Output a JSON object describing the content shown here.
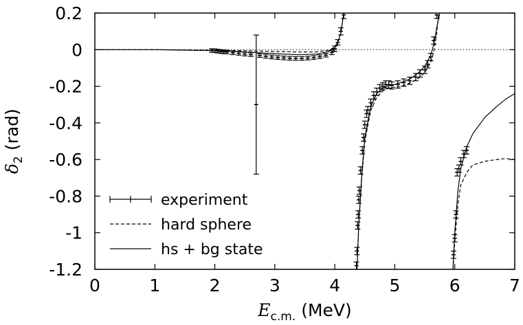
{
  "chart_data": {
    "type": "line",
    "xlabel_main": "E",
    "xlabel_sub": "c.m.",
    "xlabel_unit": "(MeV)",
    "ylabel_main": "δ",
    "ylabel_sub": "2",
    "ylabel_unit": "(rad)",
    "xlim": [
      0,
      7
    ],
    "ylim": [
      -1.2,
      0.2
    ],
    "x_ticks": [
      0,
      1,
      2,
      3,
      4,
      5,
      6,
      7
    ],
    "x_tick_labels": [
      "0",
      "1",
      "2",
      "3",
      "4",
      "5",
      "6",
      "7"
    ],
    "y_ticks": [
      0.2,
      0,
      -0.2,
      -0.4,
      -0.6,
      -0.8,
      -1,
      -1.2
    ],
    "y_tick_labels": [
      "0.2",
      "0",
      "-0.2",
      "-0.4",
      "-0.6",
      "-0.8",
      "-1",
      "-1.2"
    ],
    "grid": false,
    "legend_position": "bottom-left",
    "legend": [
      {
        "label": "experiment",
        "style": "errorbar"
      },
      {
        "label": "hard sphere",
        "style": "dashed"
      },
      {
        "label": "hs + bg state",
        "style": "solid"
      }
    ],
    "reference_line": {
      "y": 0,
      "style": "dotted"
    },
    "series": [
      {
        "name": "experiment",
        "style": "errorbar",
        "points": [
          {
            "x": 1.95,
            "y": -0.005,
            "err": 0.01
          },
          {
            "x": 2.0,
            "y": -0.006,
            "err": 0.01
          },
          {
            "x": 2.05,
            "y": -0.008,
            "err": 0.01
          },
          {
            "x": 2.1,
            "y": -0.01,
            "err": 0.01
          },
          {
            "x": 2.15,
            "y": -0.012,
            "err": 0.01
          },
          {
            "x": 2.2,
            "y": -0.013,
            "err": 0.01
          },
          {
            "x": 2.3,
            "y": -0.017,
            "err": 0.01
          },
          {
            "x": 2.4,
            "y": -0.02,
            "err": 0.01
          },
          {
            "x": 2.5,
            "y": -0.024,
            "err": 0.01
          },
          {
            "x": 2.6,
            "y": -0.027,
            "err": 0.01
          },
          {
            "x": 2.69,
            "y": -0.3,
            "err": 0.38
          },
          {
            "x": 2.75,
            "y": -0.032,
            "err": 0.01
          },
          {
            "x": 2.85,
            "y": -0.036,
            "err": 0.01
          },
          {
            "x": 2.95,
            "y": -0.04,
            "err": 0.01
          },
          {
            "x": 3.05,
            "y": -0.043,
            "err": 0.01
          },
          {
            "x": 3.15,
            "y": -0.045,
            "err": 0.01
          },
          {
            "x": 3.25,
            "y": -0.047,
            "err": 0.01
          },
          {
            "x": 3.35,
            "y": -0.048,
            "err": 0.01
          },
          {
            "x": 3.45,
            "y": -0.048,
            "err": 0.01
          },
          {
            "x": 3.55,
            "y": -0.046,
            "err": 0.01
          },
          {
            "x": 3.65,
            "y": -0.043,
            "err": 0.01
          },
          {
            "x": 3.75,
            "y": -0.038,
            "err": 0.01
          },
          {
            "x": 3.85,
            "y": -0.03,
            "err": 0.01
          },
          {
            "x": 3.95,
            "y": -0.015,
            "err": 0.012
          },
          {
            "x": 4.0,
            "y": 0.005,
            "err": 0.015
          },
          {
            "x": 4.05,
            "y": 0.04,
            "err": 0.015
          },
          {
            "x": 4.1,
            "y": 0.1,
            "err": 0.02
          },
          {
            "x": 4.15,
            "y": 0.19,
            "err": 0.02
          },
          {
            "x": 4.36,
            "y": -1.18,
            "err": 0.02
          },
          {
            "x": 4.37,
            "y": -1.1,
            "err": 0.02
          },
          {
            "x": 4.38,
            "y": -0.96,
            "err": 0.02
          },
          {
            "x": 4.39,
            "y": -0.9,
            "err": 0.02
          },
          {
            "x": 4.4,
            "y": -0.82,
            "err": 0.02
          },
          {
            "x": 4.41,
            "y": -0.77,
            "err": 0.02
          },
          {
            "x": 4.43,
            "y": -0.66,
            "err": 0.02
          },
          {
            "x": 4.46,
            "y": -0.55,
            "err": 0.02
          },
          {
            "x": 4.48,
            "y": -0.48,
            "err": 0.02
          },
          {
            "x": 4.5,
            "y": -0.41,
            "err": 0.02
          },
          {
            "x": 4.53,
            "y": -0.35,
            "err": 0.02
          },
          {
            "x": 4.55,
            "y": -0.33,
            "err": 0.02
          },
          {
            "x": 4.6,
            "y": -0.29,
            "err": 0.02
          },
          {
            "x": 4.65,
            "y": -0.25,
            "err": 0.02
          },
          {
            "x": 4.7,
            "y": -0.23,
            "err": 0.02
          },
          {
            "x": 4.75,
            "y": -0.21,
            "err": 0.02
          },
          {
            "x": 4.8,
            "y": -0.2,
            "err": 0.02
          },
          {
            "x": 4.85,
            "y": -0.19,
            "err": 0.02
          },
          {
            "x": 4.9,
            "y": -0.19,
            "err": 0.02
          },
          {
            "x": 4.95,
            "y": -0.195,
            "err": 0.02
          },
          {
            "x": 5.05,
            "y": -0.19,
            "err": 0.02
          },
          {
            "x": 5.15,
            "y": -0.18,
            "err": 0.02
          },
          {
            "x": 5.25,
            "y": -0.17,
            "err": 0.02
          },
          {
            "x": 5.35,
            "y": -0.15,
            "err": 0.02
          },
          {
            "x": 5.42,
            "y": -0.13,
            "err": 0.02
          },
          {
            "x": 5.5,
            "y": -0.11,
            "err": 0.02
          },
          {
            "x": 5.55,
            "y": -0.08,
            "err": 0.02
          },
          {
            "x": 5.6,
            "y": -0.04,
            "err": 0.02
          },
          {
            "x": 5.65,
            "y": 0.05,
            "err": 0.02
          },
          {
            "x": 5.7,
            "y": 0.19,
            "err": 0.02
          },
          {
            "x": 5.98,
            "y": -1.12,
            "err": 0.02
          },
          {
            "x": 6.0,
            "y": -1.03,
            "err": 0.02
          },
          {
            "x": 6.02,
            "y": -0.9,
            "err": 0.02
          },
          {
            "x": 6.04,
            "y": -0.67,
            "err": 0.02
          },
          {
            "x": 6.07,
            "y": -0.65,
            "err": 0.02
          },
          {
            "x": 6.1,
            "y": -0.61,
            "err": 0.02
          },
          {
            "x": 6.15,
            "y": -0.57,
            "err": 0.02
          },
          {
            "x": 6.2,
            "y": -0.55,
            "err": 0.02
          }
        ]
      },
      {
        "name": "hard sphere",
        "style": "dashed",
        "segments": [
          [
            [
              0,
              0
            ],
            [
              1,
              0
            ],
            [
              2,
              -0.003
            ],
            [
              2.5,
              -0.006
            ],
            [
              3,
              -0.01
            ],
            [
              3.4,
              -0.013
            ],
            [
              3.7,
              -0.012
            ],
            [
              3.9,
              -0.003
            ],
            [
              4.0,
              0.015
            ],
            [
              4.05,
              0.04
            ],
            [
              4.1,
              0.09
            ],
            [
              4.15,
              0.2
            ]
          ],
          [
            [
              4.37,
              -1.2
            ],
            [
              4.4,
              -0.95
            ],
            [
              4.45,
              -0.7
            ],
            [
              4.5,
              -0.5
            ],
            [
              4.6,
              -0.33
            ],
            [
              4.7,
              -0.26
            ],
            [
              4.8,
              -0.225
            ],
            [
              4.9,
              -0.21
            ],
            [
              5.0,
              -0.205
            ],
            [
              5.1,
              -0.2
            ],
            [
              5.2,
              -0.19
            ],
            [
              5.3,
              -0.175
            ],
            [
              5.4,
              -0.155
            ],
            [
              5.5,
              -0.125
            ],
            [
              5.6,
              -0.07
            ],
            [
              5.65,
              -0.01
            ],
            [
              5.7,
              0.09
            ],
            [
              5.73,
              0.2
            ]
          ],
          [
            [
              5.97,
              -1.2
            ],
            [
              6.0,
              -1.05
            ],
            [
              6.05,
              -0.85
            ],
            [
              6.1,
              -0.74
            ],
            [
              6.2,
              -0.67
            ],
            [
              6.3,
              -0.63
            ],
            [
              6.5,
              -0.61
            ],
            [
              6.7,
              -0.6
            ],
            [
              6.85,
              -0.595
            ],
            [
              7.0,
              -0.6
            ]
          ]
        ]
      },
      {
        "name": "hs + bg state",
        "style": "solid",
        "segments": [
          [
            [
              0,
              0
            ],
            [
              1,
              0
            ],
            [
              2,
              -0.005
            ],
            [
              2.5,
              -0.013
            ],
            [
              3,
              -0.022
            ],
            [
              3.4,
              -0.028
            ],
            [
              3.7,
              -0.024
            ],
            [
              3.9,
              -0.01
            ],
            [
              4.0,
              0.01
            ],
            [
              4.05,
              0.04
            ],
            [
              4.1,
              0.09
            ],
            [
              4.15,
              0.2
            ]
          ],
          [
            [
              4.37,
              -1.2
            ],
            [
              4.4,
              -0.95
            ],
            [
              4.45,
              -0.68
            ],
            [
              4.5,
              -0.48
            ],
            [
              4.6,
              -0.31
            ],
            [
              4.7,
              -0.24
            ],
            [
              4.8,
              -0.21
            ],
            [
              4.9,
              -0.195
            ],
            [
              5.0,
              -0.19
            ],
            [
              5.1,
              -0.18
            ],
            [
              5.2,
              -0.168
            ],
            [
              5.3,
              -0.15
            ],
            [
              5.4,
              -0.125
            ],
            [
              5.5,
              -0.09
            ],
            [
              5.6,
              -0.03
            ],
            [
              5.65,
              0.03
            ],
            [
              5.7,
              0.12
            ],
            [
              5.75,
              0.2
            ]
          ],
          [
            [
              5.97,
              -1.2
            ],
            [
              6.0,
              -1.0
            ],
            [
              6.05,
              -0.78
            ],
            [
              6.1,
              -0.65
            ],
            [
              6.2,
              -0.53
            ],
            [
              6.3,
              -0.46
            ],
            [
              6.5,
              -0.37
            ],
            [
              6.7,
              -0.31
            ],
            [
              6.85,
              -0.27
            ],
            [
              7.0,
              -0.24
            ]
          ]
        ]
      }
    ]
  }
}
